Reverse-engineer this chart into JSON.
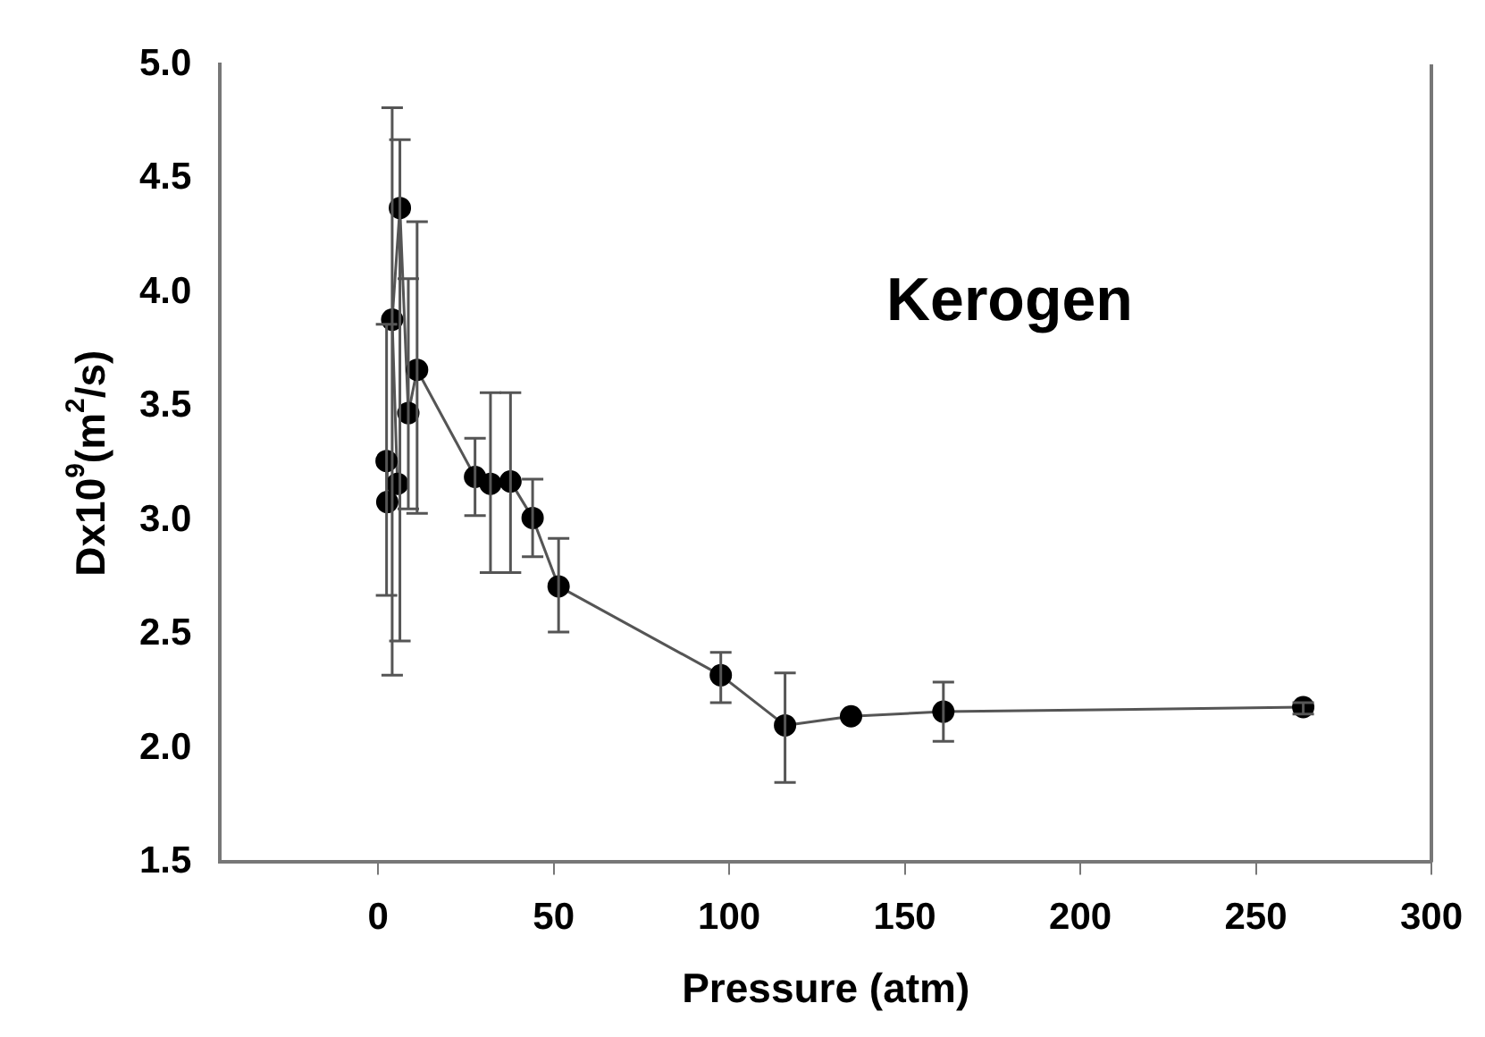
{
  "chart_data": {
    "type": "line",
    "xlabel": "Pressure (atm)",
    "ylabel": "Dx10$^{9}$(m$^{2}$/s)",
    "annotations": [
      "Kerogen"
    ],
    "x": [
      2.4,
      2.6,
      5.5,
      4,
      6.2,
      8.6,
      11.1,
      27.6,
      32,
      37.7,
      44,
      51.4,
      97.6,
      115.9,
      134.7,
      161,
      263.5
    ],
    "series": [
      {
        "color": "#000000",
        "values": [
          3.26,
          3.08,
          3.16,
          3.88,
          4.37,
          3.47,
          3.66,
          3.19,
          3.16,
          3.17,
          3.01,
          2.71,
          2.32,
          2.1,
          2.14,
          2.16,
          2.18
        ],
        "errors": [
          [
            2.67,
            3.86
          ],
          null,
          null,
          [
            2.32,
            4.81
          ],
          [
            2.47,
            4.67
          ],
          [
            3.05,
            4.06
          ],
          [
            3.03,
            4.31
          ],
          [
            3.02,
            3.36
          ],
          [
            2.77,
            3.56
          ],
          [
            2.77,
            3.56
          ],
          [
            2.84,
            3.18
          ],
          [
            2.51,
            2.92
          ],
          [
            2.2,
            2.42
          ],
          [
            1.85,
            2.33
          ],
          null,
          [
            2.03,
            2.29
          ],
          [
            2.15,
            2.2
          ]
        ]
      }
    ],
    "xlim": [
      -45,
      300
    ],
    "xticks": [
      0,
      50,
      100,
      150,
      200,
      250,
      300
    ],
    "ylim": [
      1.5,
      5.0
    ],
    "yticks": [
      1.5,
      {
        "value": 2,
        "label": "2.0"
      },
      2.5,
      {
        "value": 3,
        "label": "3.0"
      },
      3.5,
      {
        "value": 4,
        "label": "4.0"
      },
      4.5,
      {
        "value": 5,
        "label": "5.0"
      }
    ],
    "grid": false,
    "legend": false,
    "marker": "circle",
    "line_style": "solid"
  }
}
